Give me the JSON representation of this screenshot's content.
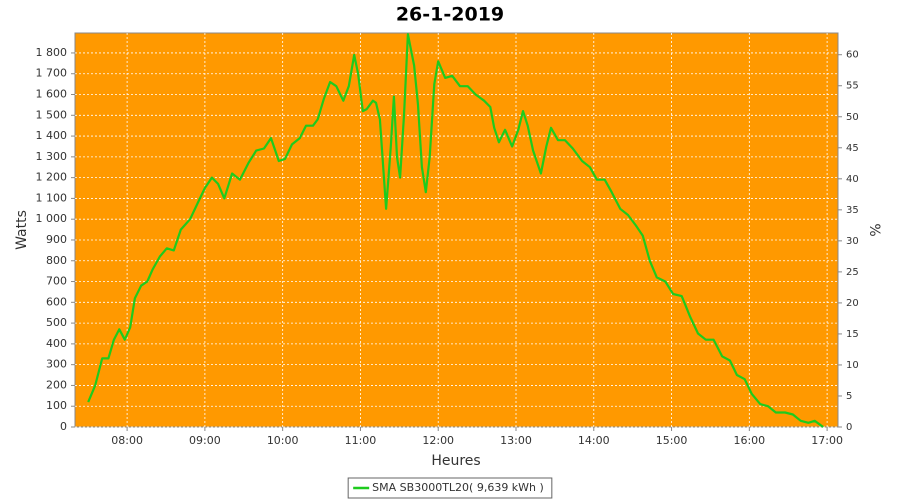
{
  "chart_data": {
    "type": "line",
    "title": "26-1-2019",
    "x_label": "Heures",
    "y_label": "Watts",
    "y2_label": "%",
    "background": "#ff9900",
    "grid": true,
    "legend": "bottom",
    "xlim": [
      7.33,
      17.14
    ],
    "xticks": [
      {
        "value": 8,
        "label": "08:00"
      },
      {
        "value": 9,
        "label": "09:00"
      },
      {
        "value": 10,
        "label": "10:00"
      },
      {
        "value": 11,
        "label": "11:00"
      },
      {
        "value": 12,
        "label": "12:00"
      },
      {
        "value": 13,
        "label": "13:00"
      },
      {
        "value": 14,
        "label": "14:00"
      },
      {
        "value": 15,
        "label": "15:00"
      },
      {
        "value": 16,
        "label": "16:00"
      },
      {
        "value": 17,
        "label": "17:00"
      }
    ],
    "ylim": [
      0,
      1896
    ],
    "yticks": [
      0,
      100,
      200,
      300,
      400,
      500,
      600,
      700,
      800,
      900,
      {
        "value": 1000,
        "label": "1 000"
      },
      {
        "value": 1100,
        "label": "1 100"
      },
      {
        "value": 1200,
        "label": "1 200"
      },
      {
        "value": 1300,
        "label": "1 300"
      },
      {
        "value": 1400,
        "label": "1 400"
      },
      {
        "value": 1500,
        "label": "1 500"
      },
      {
        "value": 1600,
        "label": "1 600"
      },
      {
        "value": 1700,
        "label": "1 700"
      },
      {
        "value": 1800,
        "label": "1 800"
      }
    ],
    "y2lim": [
      0,
      63.5
    ],
    "y2ticks": [
      0,
      5,
      10,
      15,
      20,
      25,
      30,
      35,
      40,
      45,
      50,
      55,
      60
    ],
    "x": [
      7.5,
      7.59,
      7.68,
      7.76,
      7.83,
      7.9,
      7.97,
      8.04,
      8.1,
      8.18,
      8.26,
      8.33,
      8.42,
      8.51,
      8.6,
      8.69,
      8.81,
      8.91,
      9.0,
      9.09,
      9.17,
      9.25,
      9.35,
      9.45,
      9.56,
      9.66,
      9.76,
      9.85,
      9.95,
      10.03,
      10.12,
      10.22,
      10.3,
      10.39,
      10.45,
      10.53,
      10.61,
      10.69,
      10.78,
      10.85,
      10.92,
      10.97,
      11.03,
      11.08,
      11.16,
      11.2,
      11.25,
      11.33,
      11.39,
      11.43,
      11.47,
      11.51,
      11.56,
      11.61,
      11.69,
      11.74,
      11.79,
      11.84,
      11.89,
      11.95,
      12.0,
      12.09,
      12.18,
      12.28,
      12.38,
      12.48,
      12.59,
      12.67,
      12.72,
      12.78,
      12.86,
      12.95,
      13.03,
      13.09,
      13.15,
      13.22,
      13.32,
      13.39,
      13.45,
      13.54,
      13.63,
      13.73,
      13.85,
      13.95,
      14.04,
      14.14,
      14.23,
      14.34,
      14.44,
      14.54,
      14.63,
      14.72,
      14.81,
      14.92,
      15.02,
      15.13,
      15.24,
      15.34,
      15.44,
      15.54,
      15.65,
      15.75,
      15.84,
      15.94,
      16.03,
      16.14,
      16.24,
      16.34,
      16.46,
      16.56,
      16.66,
      16.76,
      16.84,
      16.95
    ],
    "series": [
      {
        "name": "SMA SB3000TL20( 9,639 kWh )",
        "color": "#1ecb1e",
        "values": [
          120,
          200,
          330,
          330,
          420,
          470,
          420,
          480,
          620,
          680,
          700,
          760,
          820,
          860,
          850,
          950,
          1000,
          1080,
          1150,
          1200,
          1170,
          1100,
          1220,
          1190,
          1270,
          1330,
          1340,
          1390,
          1280,
          1290,
          1360,
          1390,
          1450,
          1450,
          1480,
          1580,
          1660,
          1640,
          1570,
          1640,
          1790,
          1700,
          1520,
          1530,
          1570,
          1560,
          1480,
          1050,
          1350,
          1590,
          1300,
          1200,
          1500,
          1890,
          1740,
          1550,
          1250,
          1130,
          1300,
          1650,
          1760,
          1680,
          1690,
          1640,
          1640,
          1600,
          1570,
          1540,
          1440,
          1370,
          1430,
          1350,
          1430,
          1520,
          1450,
          1330,
          1220,
          1350,
          1440,
          1380,
          1380,
          1340,
          1280,
          1250,
          1190,
          1190,
          1130,
          1050,
          1020,
          970,
          920,
          800,
          720,
          700,
          640,
          630,
          530,
          450,
          420,
          420,
          340,
          320,
          250,
          230,
          160,
          110,
          100,
          70,
          70,
          60,
          30,
          20,
          30,
          0
        ]
      }
    ]
  }
}
